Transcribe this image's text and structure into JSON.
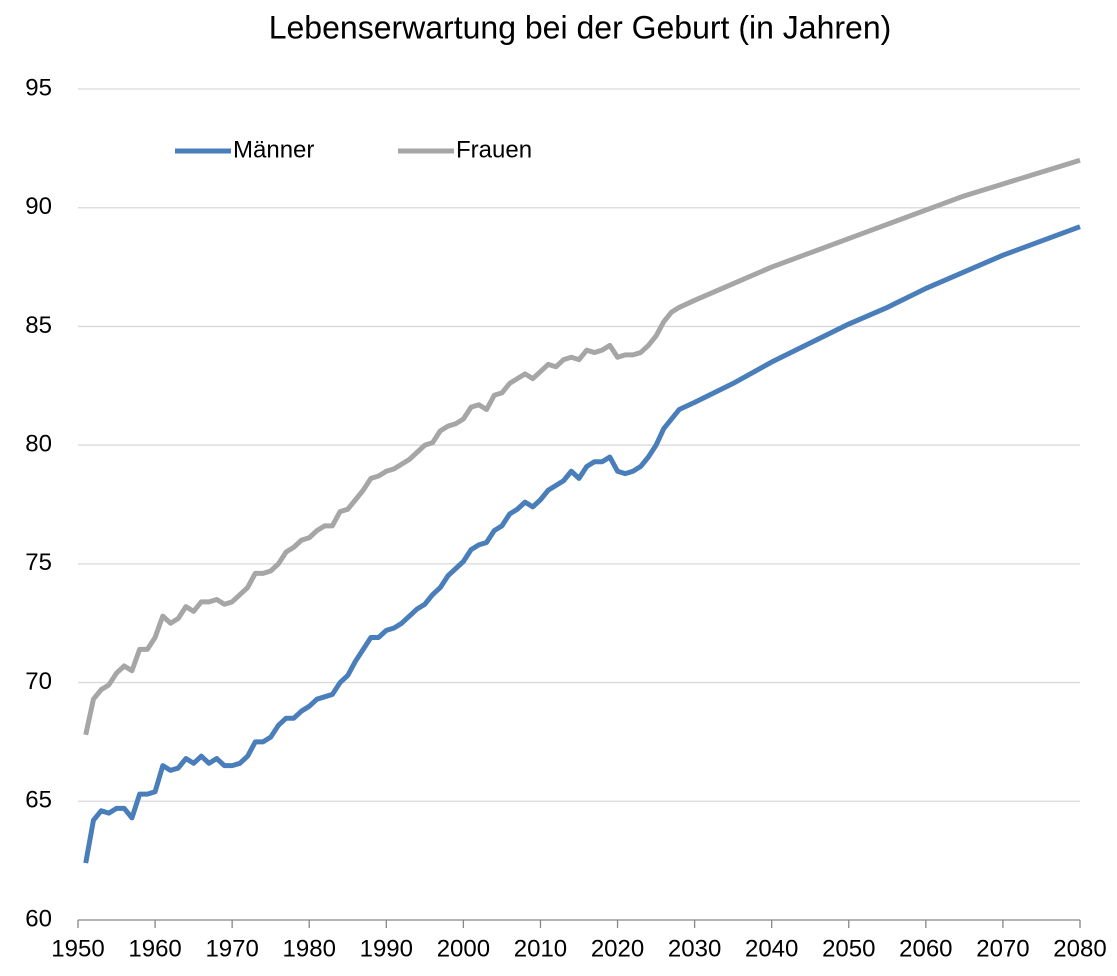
{
  "chart_data": {
    "type": "line",
    "title": "Lebenserwartung bei der Geburt (in Jahren)",
    "x": [
      1951,
      1952,
      1953,
      1954,
      1955,
      1956,
      1957,
      1958,
      1959,
      1960,
      1961,
      1962,
      1963,
      1964,
      1965,
      1966,
      1967,
      1968,
      1969,
      1970,
      1971,
      1972,
      1973,
      1974,
      1975,
      1976,
      1977,
      1978,
      1979,
      1980,
      1981,
      1982,
      1983,
      1984,
      1985,
      1986,
      1987,
      1988,
      1989,
      1990,
      1991,
      1992,
      1993,
      1994,
      1995,
      1996,
      1997,
      1998,
      1999,
      2000,
      2001,
      2002,
      2003,
      2004,
      2005,
      2006,
      2007,
      2008,
      2009,
      2010,
      2011,
      2012,
      2013,
      2014,
      2015,
      2016,
      2017,
      2018,
      2019,
      2020,
      2021,
      2022,
      2023,
      2024,
      2025,
      2026,
      2027,
      2028,
      2030,
      2035,
      2040,
      2045,
      2050,
      2055,
      2060,
      2065,
      2070,
      2075,
      2080
    ],
    "series": [
      {
        "name": "Männer",
        "color": "#4a7ebb",
        "values": [
          62.4,
          64.2,
          64.6,
          64.5,
          64.7,
          64.7,
          64.3,
          65.3,
          65.3,
          65.4,
          66.5,
          66.3,
          66.4,
          66.8,
          66.6,
          66.9,
          66.6,
          66.8,
          66.5,
          66.5,
          66.6,
          66.9,
          67.5,
          67.5,
          67.7,
          68.2,
          68.5,
          68.5,
          68.8,
          69.0,
          69.3,
          69.4,
          69.5,
          70.0,
          70.3,
          70.9,
          71.4,
          71.9,
          71.9,
          72.2,
          72.3,
          72.5,
          72.8,
          73.1,
          73.3,
          73.7,
          74.0,
          74.5,
          74.8,
          75.1,
          75.6,
          75.8,
          75.9,
          76.4,
          76.6,
          77.1,
          77.3,
          77.6,
          77.4,
          77.7,
          78.1,
          78.3,
          78.5,
          78.9,
          78.6,
          79.1,
          79.3,
          79.3,
          79.5,
          78.9,
          78.8,
          78.9,
          79.1,
          79.5,
          80.0,
          80.7,
          81.1,
          81.5,
          81.8,
          82.6,
          83.5,
          84.3,
          85.1,
          85.8,
          86.6,
          87.3,
          88.0,
          88.6,
          89.2
        ]
      },
      {
        "name": "Frauen",
        "color": "#a6a6a6",
        "values": [
          67.8,
          69.3,
          69.7,
          69.9,
          70.4,
          70.7,
          70.5,
          71.4,
          71.4,
          71.9,
          72.8,
          72.5,
          72.7,
          73.2,
          73.0,
          73.4,
          73.4,
          73.5,
          73.3,
          73.4,
          73.7,
          74.0,
          74.6,
          74.6,
          74.7,
          75.0,
          75.5,
          75.7,
          76.0,
          76.1,
          76.4,
          76.6,
          76.6,
          77.2,
          77.3,
          77.7,
          78.1,
          78.6,
          78.7,
          78.9,
          79.0,
          79.2,
          79.4,
          79.7,
          80.0,
          80.1,
          80.6,
          80.8,
          80.9,
          81.1,
          81.6,
          81.7,
          81.5,
          82.1,
          82.2,
          82.6,
          82.8,
          83.0,
          82.8,
          83.1,
          83.4,
          83.3,
          83.6,
          83.7,
          83.6,
          84.0,
          83.9,
          84.0,
          84.2,
          83.7,
          83.8,
          83.8,
          83.9,
          84.2,
          84.6,
          85.2,
          85.6,
          85.8,
          86.1,
          86.8,
          87.5,
          88.1,
          88.7,
          89.3,
          89.9,
          90.5,
          91.0,
          91.5,
          92.0
        ]
      }
    ],
    "xlim": [
      1950,
      2080
    ],
    "xticks": [
      1950,
      1960,
      1970,
      1980,
      1990,
      2000,
      2010,
      2020,
      2030,
      2040,
      2050,
      2060,
      2070,
      2080
    ],
    "ylim": [
      60,
      95
    ],
    "yticks": [
      60,
      65,
      70,
      75,
      80,
      85,
      90,
      95
    ],
    "grid": true,
    "legend": "top left"
  }
}
